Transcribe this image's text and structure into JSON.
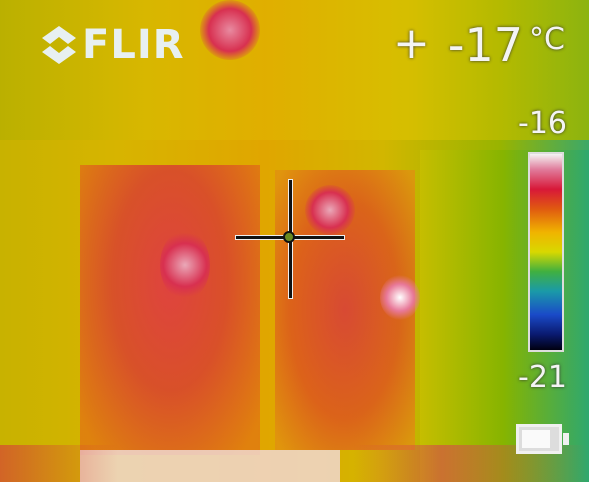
{
  "brand": "FLIR",
  "readout": {
    "crosshair_symbol": "+",
    "spot_temperature": "-17",
    "unit": "°C"
  },
  "scale": {
    "max_label": "-16",
    "min_label": "-21"
  },
  "battery": {
    "level": 0.7
  },
  "colors": {
    "palette": [
      "#ffffff",
      "#e07a9a",
      "#d81838",
      "#e05a10",
      "#f0b400",
      "#d8d800",
      "#40b040",
      "#1a9aa8",
      "#1a4ac8",
      "#0a1a70",
      "#000010"
    ]
  }
}
